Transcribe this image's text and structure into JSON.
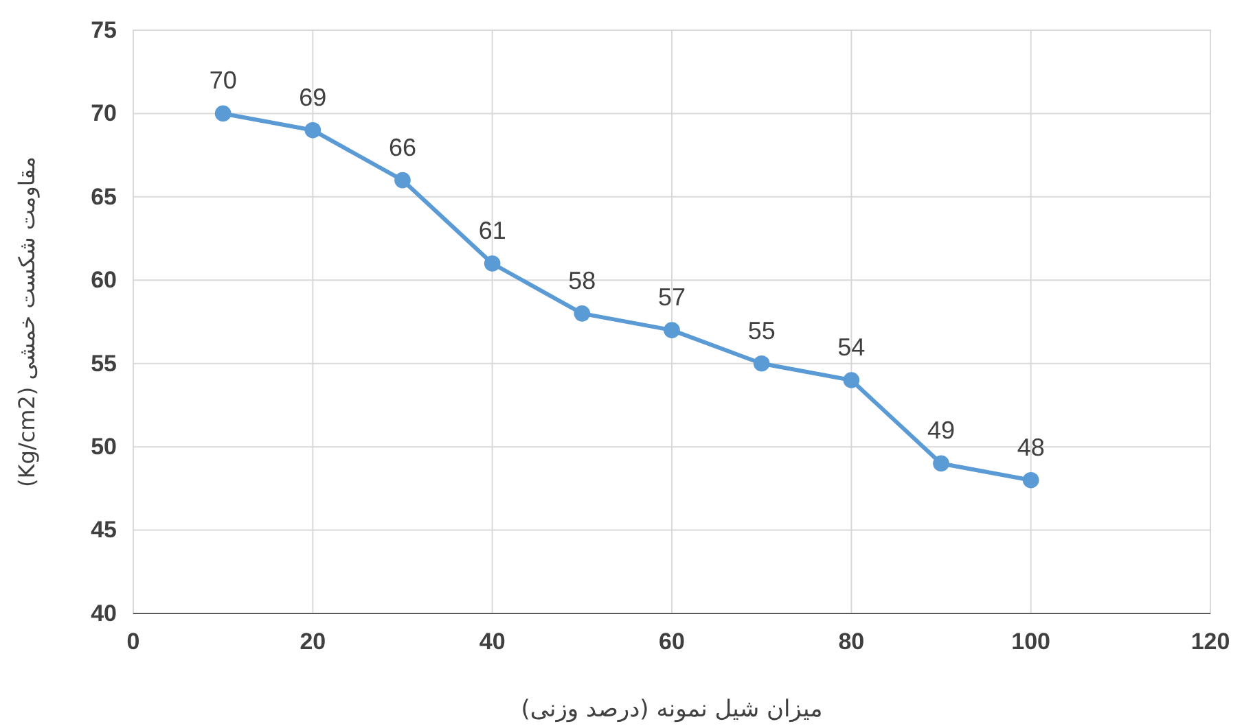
{
  "chart_data": {
    "type": "line",
    "xlabel": "میزان شیل نمونه (درصد وزنی)",
    "ylabel": "مقاومت شکست خمشی (Kg/cm2)",
    "x": [
      10,
      20,
      30,
      40,
      50,
      60,
      70,
      80,
      90,
      100
    ],
    "series": [
      {
        "color": "#5b9bd5",
        "values": [
          70,
          69,
          66,
          61,
          58,
          57,
          55,
          54,
          49,
          48
        ]
      }
    ],
    "xlim": [
      0,
      120
    ],
    "xticks": [
      0,
      20,
      40,
      60,
      80,
      100,
      120
    ],
    "ylim": [
      40,
      75
    ],
    "yticks": [
      40,
      45,
      50,
      55,
      60,
      65,
      70,
      75
    ],
    "grid": true,
    "marker": "circle",
    "line_style": "solid",
    "data_labels": true
  }
}
